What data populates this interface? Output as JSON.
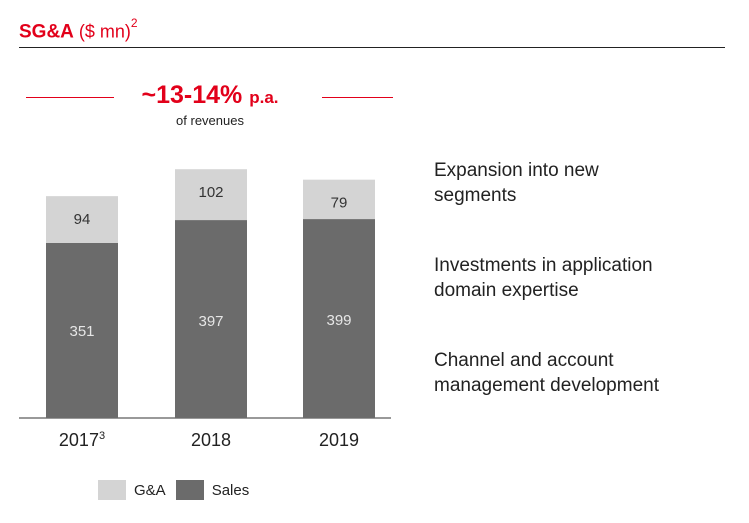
{
  "header": {
    "title_bold": "SG&A",
    "title_unit": " ($ mn)",
    "title_footnote": "2"
  },
  "growth_note": {
    "value": "~13-14%",
    "suffix": "p.a.",
    "subtitle": "of revenues"
  },
  "chart_data": {
    "type": "bar",
    "stacked": true,
    "title": "SG&A ($ mn)",
    "categories": [
      "2017",
      "2018",
      "2019"
    ],
    "category_footnotes": [
      "3",
      "",
      ""
    ],
    "series": [
      {
        "name": "Sales",
        "values": [
          351,
          397,
          399
        ],
        "color": "#6b6b6b",
        "label_color": "#e6e6e6"
      },
      {
        "name": "G&A",
        "values": [
          94,
          102,
          79
        ],
        "color": "#d4d4d4",
        "label_color": "#333333"
      }
    ],
    "ylim": [
      0,
      500
    ],
    "legend": [
      "G&A",
      "Sales"
    ],
    "grid": false
  },
  "bullets": [
    "Expansion into new\nsegments",
    "Investments in application\ndomain expertise",
    "Channel and account\nmanagement development"
  ],
  "colors": {
    "accent": "#e2001a"
  }
}
